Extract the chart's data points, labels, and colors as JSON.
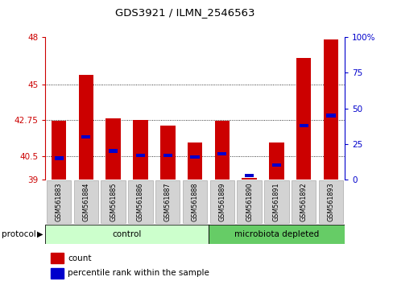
{
  "title": "GDS3921 / ILMN_2546563",
  "samples": [
    "GSM561883",
    "GSM561884",
    "GSM561885",
    "GSM561886",
    "GSM561887",
    "GSM561888",
    "GSM561889",
    "GSM561890",
    "GSM561891",
    "GSM561892",
    "GSM561893"
  ],
  "count_values": [
    42.7,
    45.6,
    42.85,
    42.75,
    42.4,
    41.35,
    42.7,
    39.1,
    41.35,
    46.7,
    47.85
  ],
  "percentile_values": [
    15,
    30,
    20,
    17,
    17,
    16,
    18,
    3,
    10,
    38,
    45
  ],
  "y_min": 39,
  "y_max": 48,
  "y_ticks": [
    39,
    40.5,
    42.75,
    45,
    48
  ],
  "right_y_ticks": [
    0,
    25,
    50,
    75,
    100
  ],
  "n_control": 6,
  "n_micro": 5,
  "bar_color_red": "#CC0000",
  "bar_color_blue": "#0000CC",
  "control_color": "#CCFFCC",
  "microbiota_color": "#66CC66",
  "bar_width": 0.55,
  "legend_count": "count",
  "legend_pct": "percentile rank within the sample",
  "protocol_label": "protocol",
  "control_label": "control",
  "microbiota_label": "microbiota depleted"
}
